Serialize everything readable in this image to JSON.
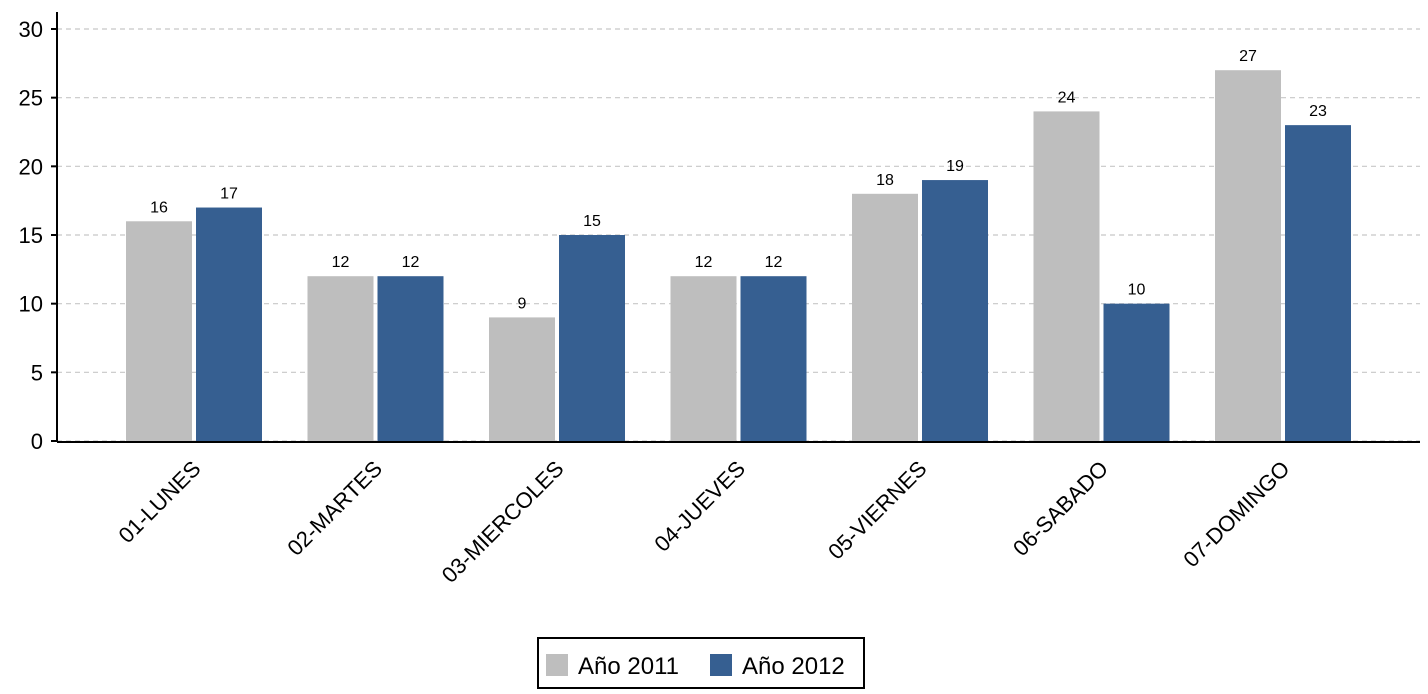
{
  "chart_data": {
    "type": "bar",
    "categories": [
      "01-LUNES",
      "02-MARTES",
      "03-MIERCOLES",
      "04-JUEVES",
      "05-VIERNES",
      "06-SABADO",
      "07-DOMINGO"
    ],
    "series": [
      {
        "name": "Año 2011",
        "values": [
          16,
          12,
          9,
          12,
          18,
          24,
          27
        ],
        "color": "#bebebe"
      },
      {
        "name": "Año 2012",
        "values": [
          17,
          12,
          15,
          12,
          19,
          10,
          23
        ],
        "color": "#365f91"
      }
    ],
    "ylim": [
      0,
      30
    ],
    "yticks": [
      "0",
      "5",
      "10",
      "15",
      "20",
      "25",
      "30"
    ],
    "grid": true,
    "legend_position": "bottom-center"
  }
}
